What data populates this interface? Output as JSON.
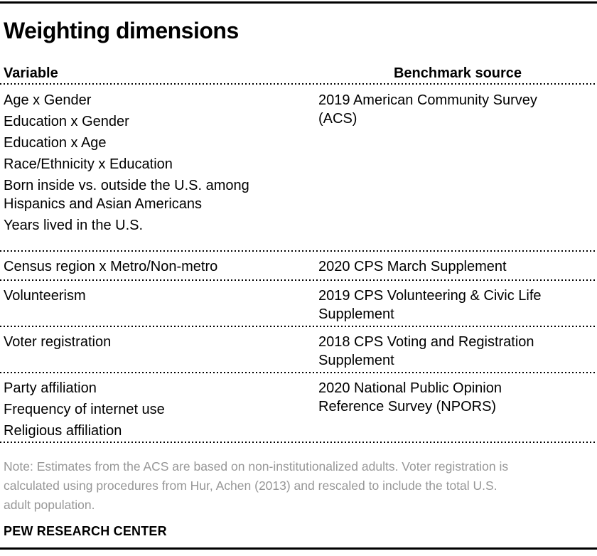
{
  "title": "Weighting dimensions",
  "chart_data": {
    "type": "table",
    "title": "Weighting dimensions",
    "columns": [
      "Variable",
      "Benchmark source"
    ],
    "rows": [
      {
        "variables": [
          "Age x Gender",
          "Education x Gender",
          "Education x Age",
          "Race/Ethnicity x Education",
          "Born inside vs. outside the U.S. among Hispanics and Asian Americans",
          "Years lived in the U.S."
        ],
        "source": "2019 American Community Survey (ACS)"
      },
      {
        "variables": [
          "Census region x Metro/Non-metro"
        ],
        "source": "2020 CPS March Supplement"
      },
      {
        "variables": [
          "Volunteerism"
        ],
        "source": "2019 CPS Volunteering & Civic Life Supplement"
      },
      {
        "variables": [
          "Voter registration"
        ],
        "source": "2018 CPS Voting and Registration Supplement"
      },
      {
        "variables": [
          "Party affiliation",
          "Frequency of internet use",
          "Religious affiliation"
        ],
        "source": "2020 National Public Opinion Reference Survey (NPORS)"
      }
    ],
    "note_lines": [
      "Note: Estimates from the ACS are based on non-institutionalized adults. Voter registration is",
      "calculated using procedures from Hur, Achen (2013) and rescaled to include the total U.S.",
      "adult population."
    ],
    "source_label": "PEW RESEARCH CENTER"
  },
  "colors": {
    "text": "#000000",
    "note": "#979797",
    "rule": "#000000",
    "background": "#ffffff"
  }
}
